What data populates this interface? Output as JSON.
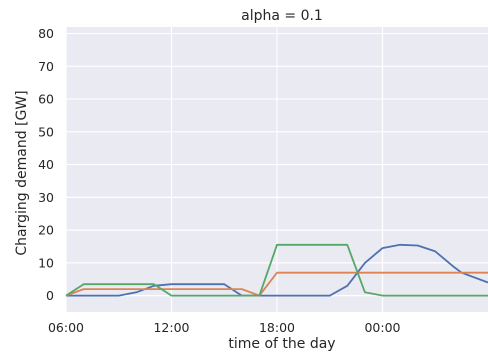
{
  "chart_data": {
    "type": "line",
    "title": "alpha = 0.1",
    "xlabel": "time of the day",
    "ylabel": "Charging demand [GW]",
    "xlim": [
      6,
      30
    ],
    "ylim": [
      -5,
      82
    ],
    "grid": true,
    "background_color": "#eaeaf2",
    "x_ticks": [
      {
        "value": 6,
        "label": "06:00"
      },
      {
        "value": 12,
        "label": "12:00"
      },
      {
        "value": 18,
        "label": "18:00"
      },
      {
        "value": 24,
        "label": "00:00"
      }
    ],
    "y_ticks": [
      0,
      10,
      20,
      30,
      40,
      50,
      60,
      70,
      80
    ],
    "series": [
      {
        "color": "#4c72b0",
        "points": [
          [
            6,
            0
          ],
          [
            7,
            0
          ],
          [
            9,
            0
          ],
          [
            10,
            1
          ],
          [
            11,
            3
          ],
          [
            12,
            3.5
          ],
          [
            15,
            3.5
          ],
          [
            16,
            0
          ],
          [
            17,
            0
          ],
          [
            21,
            0
          ],
          [
            22,
            3
          ],
          [
            23,
            10
          ],
          [
            24,
            14.5
          ],
          [
            25,
            15.5
          ],
          [
            26,
            15.3
          ],
          [
            27,
            13.5
          ],
          [
            28,
            9
          ],
          [
            28.5,
            7
          ],
          [
            30,
            4
          ]
        ]
      },
      {
        "color": "#dd8452",
        "points": [
          [
            6,
            0
          ],
          [
            7,
            2
          ],
          [
            15,
            2
          ],
          [
            16,
            2
          ],
          [
            17,
            0
          ],
          [
            18,
            7
          ],
          [
            30,
            7
          ]
        ]
      },
      {
        "color": "#55a868",
        "points": [
          [
            6,
            0
          ],
          [
            7,
            3.5
          ],
          [
            11,
            3.5
          ],
          [
            12,
            0
          ],
          [
            13,
            0
          ],
          [
            17,
            0
          ],
          [
            18,
            15.5
          ],
          [
            22,
            15.5
          ],
          [
            23,
            1
          ],
          [
            24,
            0
          ],
          [
            30,
            0
          ]
        ]
      }
    ]
  }
}
